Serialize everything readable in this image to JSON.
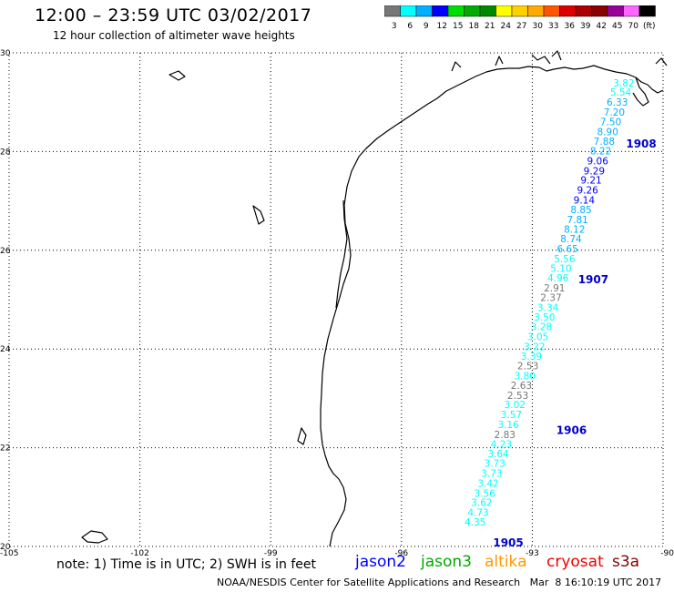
{
  "header": {
    "title": "12:00 – 23:59 UTC 03/02/2017",
    "subtitle": "12 hour collection of altimeter wave heights"
  },
  "legend": {
    "labels": [
      "3",
      "6",
      "9",
      "12",
      "15",
      "18",
      "21",
      "24",
      "27",
      "30",
      "33",
      "36",
      "39",
      "42",
      "45",
      "70",
      "(ft)"
    ],
    "colors": [
      "#777777",
      "#00ffff",
      "#00b0ff",
      "#0000ff",
      "#00dd00",
      "#00aa00",
      "#008800",
      "#ffff00",
      "#ffd000",
      "#ffaa00",
      "#ff5500",
      "#dd0000",
      "#aa0000",
      "#880000",
      "#990099",
      "#ff66ff",
      "#000000"
    ]
  },
  "axes": {
    "lat_labels": [
      "30",
      "28",
      "26",
      "24",
      "22",
      "20"
    ],
    "lon_labels": [
      "-105",
      "-102",
      "-99",
      "-96",
      "-93",
      "-90"
    ]
  },
  "track": {
    "points": [
      {
        "lon": -90.9,
        "lat": 29.32,
        "v": "3.82"
      },
      {
        "lon": -90.97,
        "lat": 29.13,
        "v": "5.54"
      },
      {
        "lon": -91.05,
        "lat": 28.93,
        "v": "6.33"
      },
      {
        "lon": -91.12,
        "lat": 28.73,
        "v": "7.20"
      },
      {
        "lon": -91.2,
        "lat": 28.53,
        "v": "7.50"
      },
      {
        "lon": -91.27,
        "lat": 28.33,
        "v": "8.90"
      },
      {
        "lon": -91.35,
        "lat": 28.14,
        "v": "7.88"
      },
      {
        "lon": -91.43,
        "lat": 27.94,
        "v": "8.22"
      },
      {
        "lon": -91.5,
        "lat": 27.74,
        "v": "9.06"
      },
      {
        "lon": -91.58,
        "lat": 27.54,
        "v": "9.29"
      },
      {
        "lon": -91.65,
        "lat": 27.35,
        "v": "9.21"
      },
      {
        "lon": -91.73,
        "lat": 27.15,
        "v": "9.26"
      },
      {
        "lon": -91.81,
        "lat": 26.95,
        "v": "9.14"
      },
      {
        "lon": -91.88,
        "lat": 26.75,
        "v": "8.85"
      },
      {
        "lon": -91.96,
        "lat": 26.55,
        "v": "7.81"
      },
      {
        "lon": -92.03,
        "lat": 26.36,
        "v": "8.12"
      },
      {
        "lon": -92.11,
        "lat": 26.16,
        "v": "8.74"
      },
      {
        "lon": -92.19,
        "lat": 25.96,
        "v": "6.65"
      },
      {
        "lon": -92.26,
        "lat": 25.76,
        "v": "5.56"
      },
      {
        "lon": -92.34,
        "lat": 25.56,
        "v": "5.10"
      },
      {
        "lon": -92.41,
        "lat": 25.37,
        "v": "4.96"
      },
      {
        "lon": -92.49,
        "lat": 25.17,
        "v": "2.91"
      },
      {
        "lon": -92.57,
        "lat": 24.97,
        "v": "2.37"
      },
      {
        "lon": -92.64,
        "lat": 24.77,
        "v": "3.34"
      },
      {
        "lon": -92.72,
        "lat": 24.58,
        "v": "3.50"
      },
      {
        "lon": -92.79,
        "lat": 24.38,
        "v": "3.28"
      },
      {
        "lon": -92.87,
        "lat": 24.18,
        "v": "3.05"
      },
      {
        "lon": -92.95,
        "lat": 23.98,
        "v": "3.22"
      },
      {
        "lon": -93.02,
        "lat": 23.78,
        "v": "3.39"
      },
      {
        "lon": -93.1,
        "lat": 23.59,
        "v": "2.53"
      },
      {
        "lon": -93.17,
        "lat": 23.39,
        "v": "3.80"
      },
      {
        "lon": -93.25,
        "lat": 23.19,
        "v": "2.63"
      },
      {
        "lon": -93.33,
        "lat": 22.99,
        "v": "2.53"
      },
      {
        "lon": -93.4,
        "lat": 22.8,
        "v": "3.02"
      },
      {
        "lon": -93.48,
        "lat": 22.6,
        "v": "3.57"
      },
      {
        "lon": -93.55,
        "lat": 22.4,
        "v": "3.16"
      },
      {
        "lon": -93.63,
        "lat": 22.2,
        "v": "2.83"
      },
      {
        "lon": -93.71,
        "lat": 22.0,
        "v": "4.23"
      },
      {
        "lon": -93.78,
        "lat": 21.81,
        "v": "3.64"
      },
      {
        "lon": -93.86,
        "lat": 21.61,
        "v": "3.73"
      },
      {
        "lon": -93.93,
        "lat": 21.41,
        "v": "3.73"
      },
      {
        "lon": -94.01,
        "lat": 21.21,
        "v": "3.42"
      },
      {
        "lon": -94.09,
        "lat": 21.01,
        "v": "3.56"
      },
      {
        "lon": -94.16,
        "lat": 20.82,
        "v": "3.62"
      },
      {
        "lon": -94.24,
        "lat": 20.62,
        "v": "4.73"
      },
      {
        "lon": -94.31,
        "lat": 20.42,
        "v": "4.35"
      }
    ],
    "hour_labels": [
      {
        "lon": -90.5,
        "lat": 28.08,
        "text": "1908"
      },
      {
        "lon": -91.6,
        "lat": 25.33,
        "text": "1907"
      },
      {
        "lon": -92.1,
        "lat": 22.28,
        "text": "1906"
      },
      {
        "lon": -93.55,
        "lat": 20.0,
        "text": "1905"
      }
    ]
  },
  "footer": {
    "note": "note: 1) Time is in UTC; 2) SWH is in feet",
    "satellites": [
      {
        "name": "jason2",
        "color": "#0000ff"
      },
      {
        "name": "jason3",
        "color": "#00aa00"
      },
      {
        "name": "altika",
        "color": "#ff9900"
      },
      {
        "name": "cryosat",
        "color": "#ee0000"
      },
      {
        "name": "s3a",
        "color": "#880000"
      }
    ],
    "credit": "NOAA/NESDIS Center for Satellite Applications and Research   Mar  8 16:10:19 UTC 2017"
  }
}
